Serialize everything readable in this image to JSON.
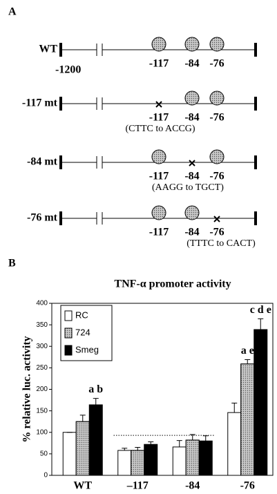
{
  "panel_a": {
    "label": "A",
    "rows": [
      {
        "name": "WT",
        "start_label": "-1200",
        "note": null,
        "sites": [
          {
            "label": "-117",
            "mutated": false
          },
          {
            "label": "-84",
            "mutated": false
          },
          {
            "label": "-76",
            "mutated": false
          }
        ]
      },
      {
        "name": "-117 mt",
        "start_label": null,
        "note": "(CTTC to ACCG)",
        "sites": [
          {
            "label": "-117",
            "mutated": true
          },
          {
            "label": "-84",
            "mutated": false
          },
          {
            "label": "-76",
            "mutated": false
          }
        ]
      },
      {
        "name": "-84 mt",
        "start_label": null,
        "note": "(AAGG to TGCT)",
        "sites": [
          {
            "label": "-117",
            "mutated": false
          },
          {
            "label": "-84",
            "mutated": true
          },
          {
            "label": "-76",
            "mutated": false
          }
        ]
      },
      {
        "name": "-76 mt",
        "start_label": null,
        "note": "(TTTC to CACT)",
        "sites": [
          {
            "label": "-117",
            "mutated": false
          },
          {
            "label": "-84",
            "mutated": false
          },
          {
            "label": "-76",
            "mutated": true
          }
        ]
      }
    ]
  },
  "chart_data": {
    "type": "bar",
    "panel_label": "B",
    "title": "TNF-α promoter activity",
    "y_label": "% relative luc. activity",
    "categories": [
      "WT",
      "–117",
      "-84",
      "-76"
    ],
    "series": [
      {
        "name": "RC",
        "color": "#ffffff",
        "values": [
          100,
          58,
          66,
          146
        ],
        "errors": [
          0,
          5,
          15,
          22
        ],
        "letters": [
          null,
          null,
          null,
          null
        ]
      },
      {
        "name": "724",
        "color": "#b4b4b4",
        "values": [
          125,
          58,
          82,
          259
        ],
        "errors": [
          15,
          7,
          13,
          10
        ],
        "letters": [
          null,
          null,
          null,
          "a e"
        ]
      },
      {
        "name": "Smeg",
        "color": "#000000",
        "values": [
          164,
          72,
          80,
          339
        ],
        "errors": [
          15,
          6,
          12,
          25
        ],
        "letters": [
          "a b",
          null,
          null,
          "c d e"
        ]
      }
    ],
    "reference_line": 93,
    "ylim": [
      0,
      400
    ],
    "yticks": [
      0,
      50,
      100,
      150,
      200,
      250,
      300,
      350,
      400
    ],
    "grid": false,
    "legend": "upper-left"
  }
}
